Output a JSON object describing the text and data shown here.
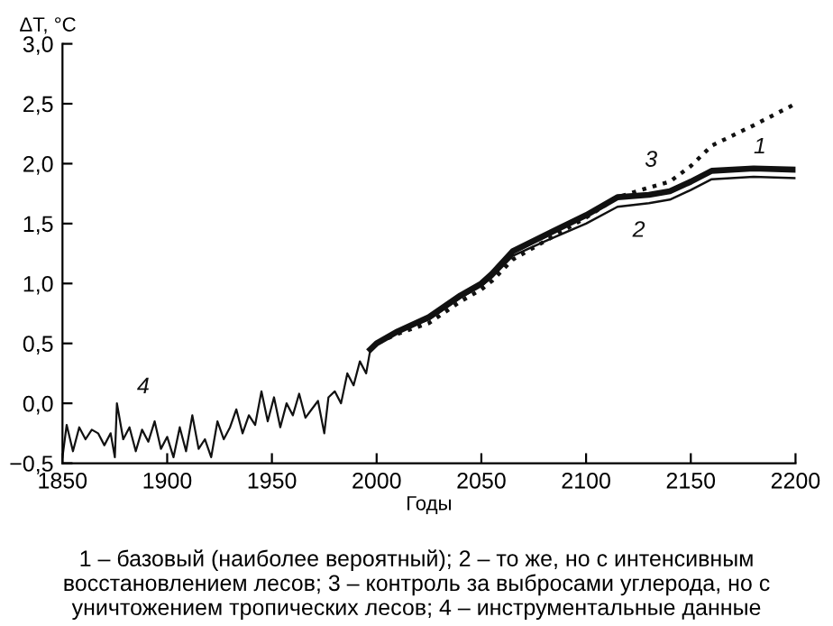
{
  "chart_data": {
    "type": "line",
    "ylabel": "ΔT, °C",
    "xlabel": "Годы",
    "xlim": [
      1850,
      2200
    ],
    "xticks": [
      1850,
      1900,
      1950,
      2000,
      2050,
      2100,
      2150,
      2200
    ],
    "ylim": [
      -0.5,
      3.0
    ],
    "yticks": [
      {
        "value": -0.5,
        "label": "−0,5"
      },
      {
        "value": 0,
        "label": "0,0"
      },
      {
        "value": 0.5,
        "label": "0,5"
      },
      {
        "value": 1.0,
        "label": "1,0"
      },
      {
        "value": 1.5,
        "label": "1,5"
      },
      {
        "value": 2.0,
        "label": "2,0"
      },
      {
        "value": 2.5,
        "label": "2,5"
      },
      {
        "value": 3.0,
        "label": "3,0"
      }
    ],
    "grid": false,
    "legend": false,
    "series": [
      {
        "name": "1",
        "color": "#111111",
        "line_style": "solid",
        "x": [
          1997,
          2000,
          2010,
          2025,
          2040,
          2050,
          2055,
          2065,
          2080,
          2100,
          2115,
          2130,
          2140,
          2150,
          2160,
          2180,
          2200
        ],
        "values": [
          0.45,
          0.5,
          0.6,
          0.72,
          0.9,
          1.0,
          1.08,
          1.27,
          1.4,
          1.57,
          1.72,
          1.74,
          1.77,
          1.85,
          1.94,
          1.96,
          1.95
        ]
      },
      {
        "name": "2",
        "color": "#111111",
        "line_style": "solid",
        "x": [
          1997,
          2000,
          2010,
          2025,
          2040,
          2050,
          2055,
          2065,
          2080,
          2100,
          2115,
          2130,
          2140,
          2150,
          2160,
          2180,
          2200
        ],
        "values": [
          0.45,
          0.5,
          0.6,
          0.7,
          0.88,
          0.98,
          1.05,
          1.23,
          1.35,
          1.5,
          1.64,
          1.67,
          1.7,
          1.78,
          1.87,
          1.89,
          1.88
        ]
      },
      {
        "name": "3",
        "color": "#111111",
        "line_style": "dotted",
        "x": [
          1997,
          2000,
          2010,
          2025,
          2040,
          2050,
          2055,
          2065,
          2080,
          2100,
          2115,
          2130,
          2140,
          2150,
          2160,
          2180,
          2200
        ],
        "values": [
          0.45,
          0.5,
          0.58,
          0.67,
          0.85,
          0.95,
          1.02,
          1.2,
          1.35,
          1.55,
          1.72,
          1.8,
          1.85,
          1.98,
          2.15,
          2.32,
          2.5
        ]
      },
      {
        "name": "4",
        "color": "#111111",
        "line_style": "solid",
        "x": [
          1850,
          1852,
          1855,
          1858,
          1861,
          1864,
          1867,
          1870,
          1873,
          1875,
          1876,
          1879,
          1882,
          1885,
          1888,
          1891,
          1894,
          1897,
          1900,
          1903,
          1906,
          1909,
          1912,
          1915,
          1918,
          1921,
          1924,
          1927,
          1930,
          1933,
          1936,
          1939,
          1942,
          1945,
          1948,
          1951,
          1954,
          1957,
          1960,
          1963,
          1966,
          1969,
          1972,
          1975,
          1977,
          1980,
          1983,
          1986,
          1989,
          1992,
          1995,
          1997
        ],
        "values": [
          -0.45,
          -0.18,
          -0.4,
          -0.2,
          -0.3,
          -0.22,
          -0.25,
          -0.35,
          -0.25,
          -0.45,
          0.0,
          -0.3,
          -0.2,
          -0.4,
          -0.22,
          -0.32,
          -0.15,
          -0.38,
          -0.28,
          -0.45,
          -0.2,
          -0.4,
          -0.1,
          -0.38,
          -0.3,
          -0.45,
          -0.15,
          -0.3,
          -0.2,
          -0.05,
          -0.25,
          -0.1,
          -0.18,
          0.1,
          -0.15,
          0.05,
          -0.2,
          0.0,
          -0.1,
          0.08,
          -0.12,
          -0.05,
          0.02,
          -0.25,
          0.05,
          0.1,
          0.0,
          0.25,
          0.15,
          0.35,
          0.25,
          0.45
        ]
      }
    ],
    "annotations": [
      "1 – базовый (наиболее вероятный); 2 – то же, но с интенсивным восстановлением лесов; 3 – контроль за выбросами углерода, но с уничтожением тропических лесов; 4 – инструментальные данные"
    ]
  }
}
